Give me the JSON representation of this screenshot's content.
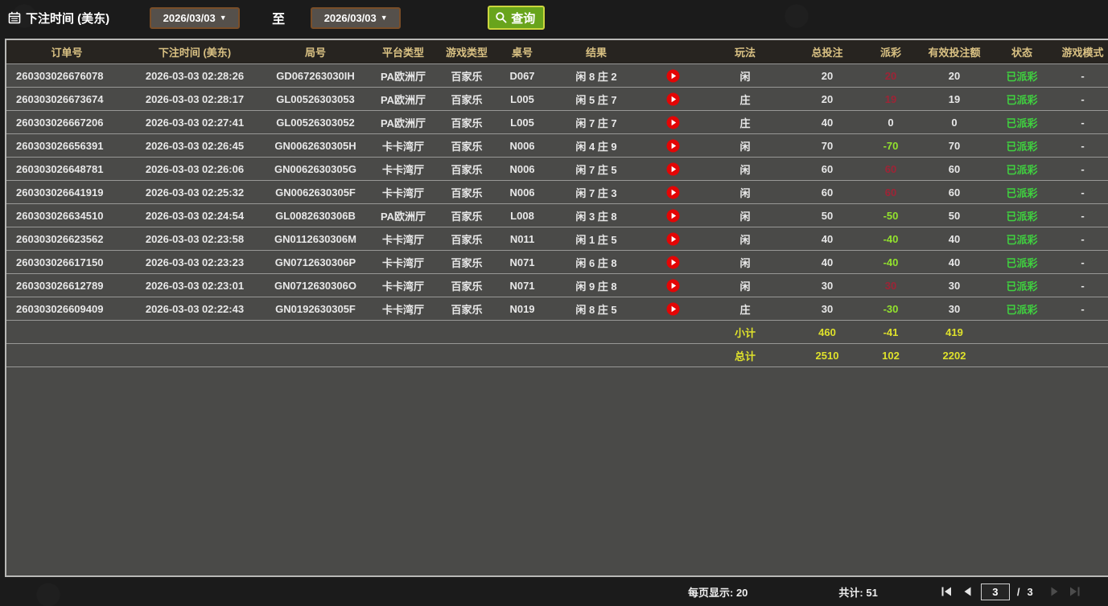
{
  "toolbar": {
    "label": "下注时间 (美东)",
    "date_from": "2026/03/03",
    "to_label": "至",
    "date_to": "2026/03/03",
    "search_label": "查询",
    "caret": "▼"
  },
  "table": {
    "headers": [
      "订单号",
      "下注时间 (美东)",
      "局号",
      "平台类型",
      "游戏类型",
      "桌号",
      "结果",
      "",
      "玩法",
      "总投注",
      "派彩",
      "有效投注额",
      "状态",
      "游戏模式"
    ],
    "rows": [
      {
        "order": "260303026676078",
        "time": "2026-03-03 02:28:26",
        "round": "GD067263030IH",
        "platform": "PA欧洲厅",
        "game": "百家乐",
        "table_no": "D067",
        "result": "闲 8 庄 2",
        "side": "闲",
        "bet": "20",
        "payout": "20",
        "payout_class": "win",
        "valid": "20",
        "status": "已派彩",
        "mode": "-"
      },
      {
        "order": "260303026673674",
        "time": "2026-03-03 02:28:17",
        "round": "GL00526303053",
        "platform": "PA欧洲厅",
        "game": "百家乐",
        "table_no": "L005",
        "result": "闲 5 庄 7",
        "side": "庄",
        "bet": "20",
        "payout": "19",
        "payout_class": "win",
        "valid": "19",
        "status": "已派彩",
        "mode": "-"
      },
      {
        "order": "260303026667206",
        "time": "2026-03-03 02:27:41",
        "round": "GL00526303052",
        "platform": "PA欧洲厅",
        "game": "百家乐",
        "table_no": "L005",
        "result": "闲 7 庄 7",
        "side": "庄",
        "bet": "40",
        "payout": "0",
        "payout_class": "zero",
        "valid": "0",
        "status": "已派彩",
        "mode": "-"
      },
      {
        "order": "260303026656391",
        "time": "2026-03-03 02:26:45",
        "round": "GN0062630305H",
        "platform": "卡卡湾厅",
        "game": "百家乐",
        "table_no": "N006",
        "result": "闲 4 庄 9",
        "side": "闲",
        "bet": "70",
        "payout": "-70",
        "payout_class": "loss",
        "valid": "70",
        "status": "已派彩",
        "mode": "-"
      },
      {
        "order": "260303026648781",
        "time": "2026-03-03 02:26:06",
        "round": "GN0062630305G",
        "platform": "卡卡湾厅",
        "game": "百家乐",
        "table_no": "N006",
        "result": "闲 7 庄 5",
        "side": "闲",
        "bet": "60",
        "payout": "60",
        "payout_class": "win",
        "valid": "60",
        "status": "已派彩",
        "mode": "-"
      },
      {
        "order": "260303026641919",
        "time": "2026-03-03 02:25:32",
        "round": "GN0062630305F",
        "platform": "卡卡湾厅",
        "game": "百家乐",
        "table_no": "N006",
        "result": "闲 7 庄 3",
        "side": "闲",
        "bet": "60",
        "payout": "60",
        "payout_class": "win",
        "valid": "60",
        "status": "已派彩",
        "mode": "-"
      },
      {
        "order": "260303026634510",
        "time": "2026-03-03 02:24:54",
        "round": "GL0082630306B",
        "platform": "PA欧洲厅",
        "game": "百家乐",
        "table_no": "L008",
        "result": "闲 3 庄 8",
        "side": "闲",
        "bet": "50",
        "payout": "-50",
        "payout_class": "loss",
        "valid": "50",
        "status": "已派彩",
        "mode": "-"
      },
      {
        "order": "260303026623562",
        "time": "2026-03-03 02:23:58",
        "round": "GN0112630306M",
        "platform": "卡卡湾厅",
        "game": "百家乐",
        "table_no": "N011",
        "result": "闲 1 庄 5",
        "side": "闲",
        "bet": "40",
        "payout": "-40",
        "payout_class": "loss",
        "valid": "40",
        "status": "已派彩",
        "mode": "-"
      },
      {
        "order": "260303026617150",
        "time": "2026-03-03 02:23:23",
        "round": "GN0712630306P",
        "platform": "卡卡湾厅",
        "game": "百家乐",
        "table_no": "N071",
        "result": "闲 6 庄 8",
        "side": "闲",
        "bet": "40",
        "payout": "-40",
        "payout_class": "loss",
        "valid": "40",
        "status": "已派彩",
        "mode": "-"
      },
      {
        "order": "260303026612789",
        "time": "2026-03-03 02:23:01",
        "round": "GN0712630306O",
        "platform": "卡卡湾厅",
        "game": "百家乐",
        "table_no": "N071",
        "result": "闲 9 庄 8",
        "side": "闲",
        "bet": "30",
        "payout": "30",
        "payout_class": "win",
        "valid": "30",
        "status": "已派彩",
        "mode": "-"
      },
      {
        "order": "260303026609409",
        "time": "2026-03-03 02:22:43",
        "round": "GN0192630305F",
        "platform": "卡卡湾厅",
        "game": "百家乐",
        "table_no": "N019",
        "result": "闲 8 庄 5",
        "side": "庄",
        "bet": "30",
        "payout": "-30",
        "payout_class": "loss",
        "valid": "30",
        "status": "已派彩",
        "mode": "-"
      }
    ],
    "subtotal": {
      "label": "小计",
      "bet": "460",
      "payout": "-41",
      "valid": "419"
    },
    "total": {
      "label": "总计",
      "bet": "2510",
      "payout": "102",
      "valid": "2202"
    }
  },
  "footer": {
    "per_page": "每页显示: 20",
    "count": "共计: 51",
    "page": "3",
    "sep": "/",
    "pages": "3"
  },
  "icons": {
    "toolbar": "calendar-icon",
    "search_button": "search-icon",
    "result_cell": "play-icon",
    "pagination": [
      "first-page-icon",
      "prev-page-icon",
      "next-page-icon",
      "last-page-icon"
    ]
  },
  "colors": {
    "page_bg": "#1b1b1b",
    "row_bg": "#4a4a48",
    "header_bg": "#272420",
    "header_text": "#d9c183",
    "button_green": "#68a41c",
    "button_border": "#ccd63e",
    "status_green": "#3fd23f",
    "payout_win_red": "#9e2436",
    "payout_loss_green": "#93e32d",
    "totals_yellow": "#dfe22b"
  }
}
